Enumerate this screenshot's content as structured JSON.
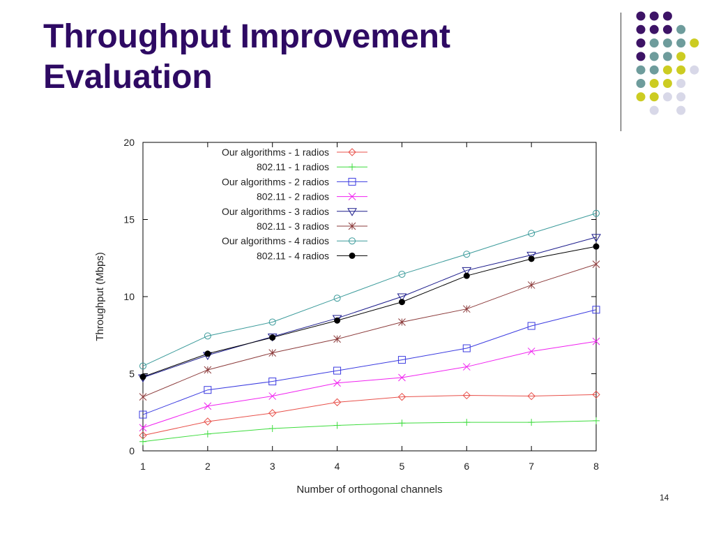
{
  "slide": {
    "title_line1": "Throughput Improvement",
    "title_line2": "Evaluation",
    "page_number": "14",
    "title_color": "#2e0a63"
  },
  "decoration": {
    "dot_colors": {
      "purple": "#3d1366",
      "teal": "#6e9c9c",
      "olive": "#cccc22",
      "lavender": "#d8d8e8"
    },
    "dot_grid": [
      [
        "purple",
        "purple",
        "purple",
        null,
        null
      ],
      [
        "purple",
        "purple",
        "purple",
        "teal",
        null
      ],
      [
        "purple",
        "teal",
        "teal",
        "teal",
        "olive"
      ],
      [
        "purple",
        "teal",
        "teal",
        "olive",
        null
      ],
      [
        "teal",
        "teal",
        "olive",
        "olive",
        "lavender"
      ],
      [
        "teal",
        "olive",
        "olive",
        "lavender",
        null
      ],
      [
        "olive",
        "olive",
        "lavender",
        "lavender",
        null
      ],
      [
        null,
        "lavender",
        null,
        "lavender",
        null
      ]
    ]
  },
  "chart_data": {
    "type": "line",
    "xlabel": "Number of orthogonal channels",
    "ylabel": "Throughput (Mbps)",
    "x": [
      1,
      2,
      3,
      4,
      5,
      6,
      7,
      8
    ],
    "xlim": [
      1,
      8
    ],
    "ylim": [
      0,
      20
    ],
    "yticks": [
      0,
      5,
      10,
      15,
      20
    ],
    "grid": false,
    "legend_position": "top-left",
    "series": [
      {
        "name": "Our algorithms - 1 radios",
        "color": "#e8504a",
        "marker": "diamond",
        "values": [
          1.0,
          1.9,
          2.45,
          3.15,
          3.5,
          3.6,
          3.55,
          3.65
        ]
      },
      {
        "name": "802.11 - 1 radios",
        "color": "#3ddc3d",
        "marker": "plus",
        "values": [
          0.6,
          1.1,
          1.45,
          1.65,
          1.8,
          1.85,
          1.85,
          1.95
        ]
      },
      {
        "name": "Our algorithms - 2 radios",
        "color": "#3a3ae0",
        "marker": "square",
        "values": [
          2.35,
          3.95,
          4.5,
          5.2,
          5.9,
          6.65,
          8.1,
          9.15
        ]
      },
      {
        "name": "802.11 - 2 radios",
        "color": "#f020f0",
        "marker": "x",
        "values": [
          1.5,
          2.9,
          3.55,
          4.4,
          4.75,
          5.45,
          6.45,
          7.1
        ]
      },
      {
        "name": "Our algorithms - 3 radios",
        "color": "#1c1c8c",
        "marker": "triangle-down",
        "values": [
          4.75,
          6.2,
          7.4,
          8.6,
          10.0,
          11.7,
          12.7,
          13.85
        ]
      },
      {
        "name": "802.11 - 3 radios",
        "color": "#8b3a3a",
        "marker": "asterisk",
        "values": [
          3.5,
          5.25,
          6.35,
          7.25,
          8.35,
          9.2,
          10.75,
          12.1
        ]
      },
      {
        "name": "Our algorithms - 4 radios",
        "color": "#3a9a9a",
        "marker": "circle-open",
        "values": [
          5.5,
          7.45,
          8.35,
          9.9,
          11.45,
          12.75,
          14.1,
          15.4
        ]
      },
      {
        "name": "802.11 - 4 radios",
        "color": "#000000",
        "marker": "circle-filled",
        "values": [
          4.8,
          6.3,
          7.35,
          8.45,
          9.65,
          11.35,
          12.45,
          13.25
        ]
      }
    ]
  }
}
